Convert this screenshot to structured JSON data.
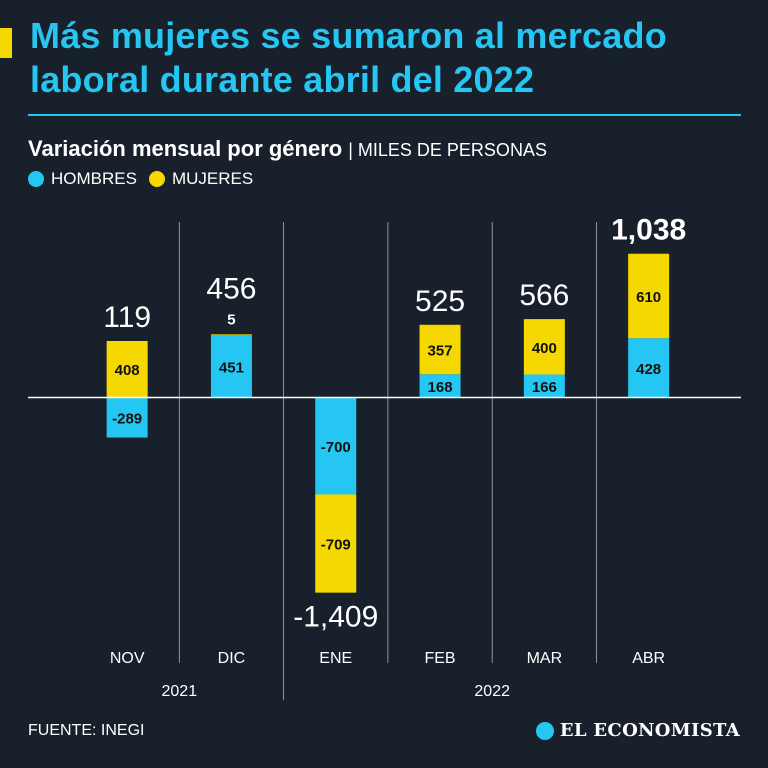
{
  "header": {
    "title": "Más mujeres se sumaron al mercado laboral durante abril del 2022",
    "subtitle": "Variación mensual por género",
    "unit": "| MILES DE PERSONAS"
  },
  "legend": [
    {
      "label": "HOMBRES",
      "color": "#26c6f2"
    },
    {
      "label": "MUJERES",
      "color": "#f5d800"
    }
  ],
  "chart_data": {
    "type": "bar",
    "stacked": true,
    "title": "Variación mensual por género",
    "ylabel": "MILES DE PERSONAS",
    "categories": [
      "NOV",
      "DIC",
      "ENE",
      "FEB",
      "MAR",
      "ABR"
    ],
    "years": [
      {
        "label": "2021",
        "categories": [
          "NOV",
          "DIC"
        ]
      },
      {
        "label": "2022",
        "categories": [
          "ENE",
          "FEB",
          "MAR",
          "ABR"
        ]
      }
    ],
    "series": [
      {
        "name": "HOMBRES",
        "color": "#26c6f2",
        "values": [
          -289,
          451,
          -700,
          168,
          166,
          428
        ]
      },
      {
        "name": "MUJERES",
        "color": "#f5d800",
        "values": [
          408,
          5,
          -709,
          357,
          400,
          610
        ]
      }
    ],
    "totals": [
      119,
      456,
      -1409,
      525,
      566,
      1038
    ],
    "total_labels": [
      "119",
      "456",
      "-1,409",
      "525",
      "566",
      "1,038"
    ],
    "segment_labels": {
      "HOMBRES": [
        "-289",
        "451",
        "-700",
        "168",
        "166",
        "428"
      ],
      "MUJERES": [
        "408",
        "5",
        "-709",
        "357",
        "400",
        "610"
      ]
    }
  },
  "footer": {
    "source": "FUENTE: INEGI",
    "brand": "EL ECONOMISTA"
  }
}
